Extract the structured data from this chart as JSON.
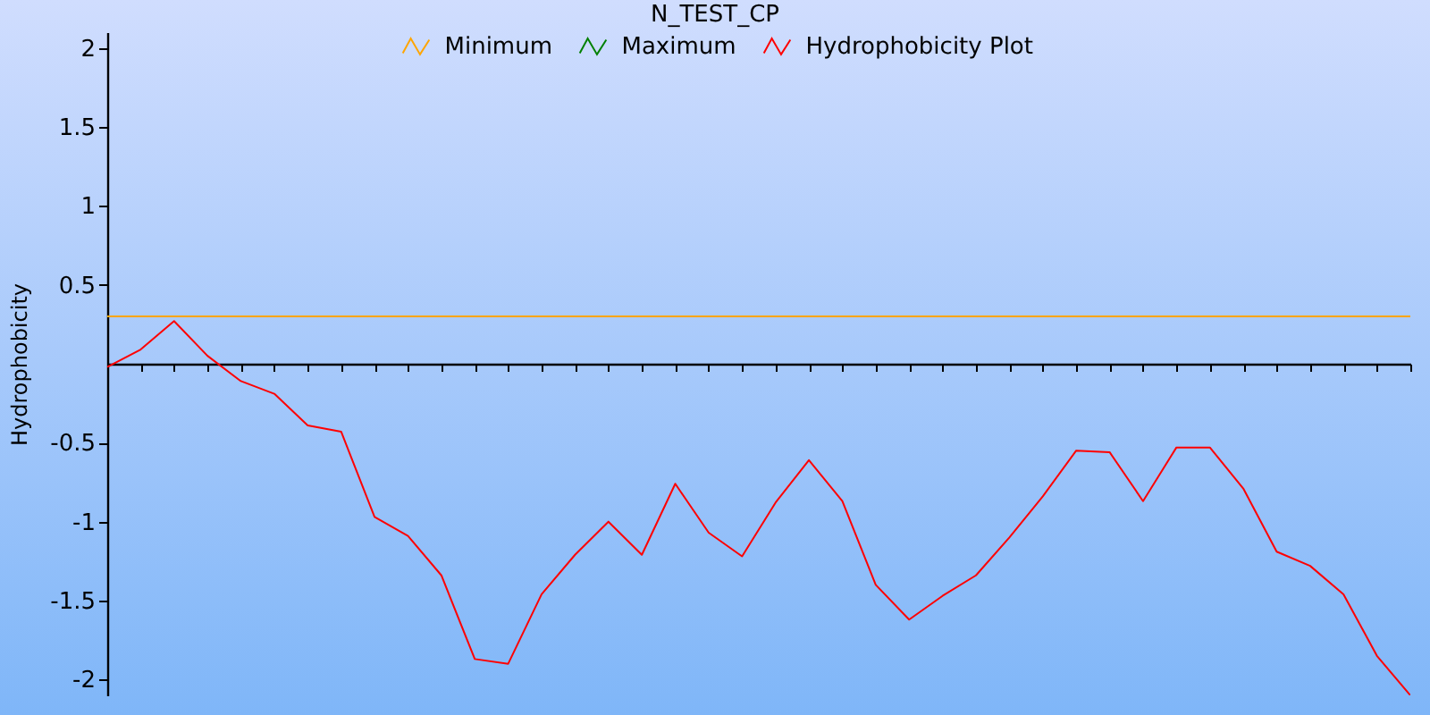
{
  "chart_data": {
    "type": "line",
    "title": "N_TEST_CP",
    "ylabel": "Hydrophobicity",
    "categories": [
      null,
      null,
      null,
      null,
      null,
      null,
      null,
      null,
      null,
      null,
      null,
      null,
      null,
      null,
      null,
      null,
      null,
      null,
      null,
      null,
      null,
      null,
      null,
      null,
      null,
      null,
      null,
      null,
      null,
      null,
      null,
      null,
      null,
      null,
      null,
      null,
      null,
      null,
      null,
      null
    ],
    "series": [
      {
        "name": "Minimum",
        "color": "#ffa500",
        "values": [
          0.3,
          0.3,
          0.3,
          0.3,
          0.3,
          0.3,
          0.3,
          0.3,
          0.3,
          0.3,
          0.3,
          0.3,
          0.3,
          0.3,
          0.3,
          0.3,
          0.3,
          0.3,
          0.3,
          0.3,
          0.3,
          0.3,
          0.3,
          0.3,
          0.3,
          0.3,
          0.3,
          0.3,
          0.3,
          0.3,
          0.3,
          0.3,
          0.3,
          0.3,
          0.3,
          0.3,
          0.3,
          0.3,
          0.3,
          0.3
        ]
      },
      {
        "name": "Maximum",
        "color": "#008000",
        "values": [
          null,
          null,
          null,
          null,
          null,
          null,
          null,
          null,
          null,
          null,
          null,
          null,
          null,
          null,
          null,
          null,
          null,
          null,
          null,
          null,
          null,
          null,
          null,
          null,
          null,
          null,
          null,
          null,
          null,
          null,
          null,
          null,
          null,
          null,
          null,
          null,
          null,
          null,
          null,
          null
        ]
      },
      {
        "name": "Hydrophobicity Plot",
        "color": "#ff0000",
        "values": [
          -0.02,
          0.09,
          0.27,
          0.05,
          -0.11,
          -0.19,
          -0.39,
          -0.43,
          -0.97,
          -1.09,
          -1.34,
          -1.87,
          -1.9,
          -1.46,
          -1.21,
          -1.0,
          -1.21,
          -0.76,
          -1.07,
          -1.22,
          -0.88,
          -0.61,
          -0.87,
          -1.4,
          -1.62,
          -1.47,
          -1.34,
          -1.1,
          -0.84,
          -0.55,
          -0.56,
          -0.87,
          -0.53,
          -0.53,
          -0.79,
          -1.19,
          -1.28,
          -1.46,
          -1.85,
          -2.1
        ]
      }
    ],
    "ylim": [
      -2.1,
      2.1
    ],
    "yticks": [
      -2,
      -1.5,
      -1,
      -0.5,
      0.5,
      1,
      1.5,
      2
    ],
    "legend": "top",
    "tick_labels": "y",
    "marker": "none",
    "line_style": "solid"
  }
}
